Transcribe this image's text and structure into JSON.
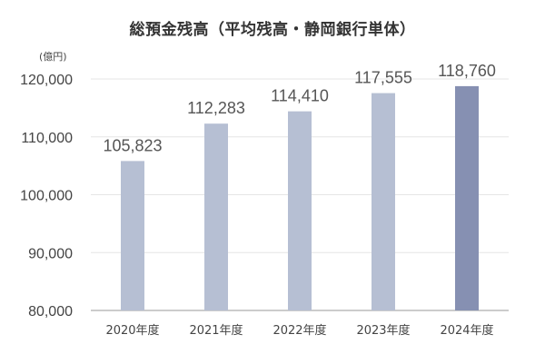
{
  "chart_data": {
    "type": "bar",
    "title": "総預金残高（平均残高・静岡銀行単体）",
    "unit": "(億円)",
    "categories": [
      "2020年度",
      "2021年度",
      "2022年度",
      "2023年度",
      "2024年度"
    ],
    "values": [
      105823,
      112283,
      114410,
      117555,
      118760
    ],
    "value_labels": [
      "105,823",
      "112,283",
      "114,410",
      "117,555",
      "118,760"
    ],
    "yticks": [
      80000,
      90000,
      100000,
      110000,
      120000
    ],
    "ytick_labels": [
      "80,000",
      "90,000",
      "100,000",
      "110,000",
      "120,000"
    ],
    "ylim": [
      80000,
      122000
    ],
    "grid": true,
    "legend": "none",
    "colors": {
      "bar": "#b6bfd3",
      "bar_highlight": "#8690b2",
      "grid": "#e6e6e6",
      "axis": "#999999"
    },
    "highlight_index": 4
  }
}
